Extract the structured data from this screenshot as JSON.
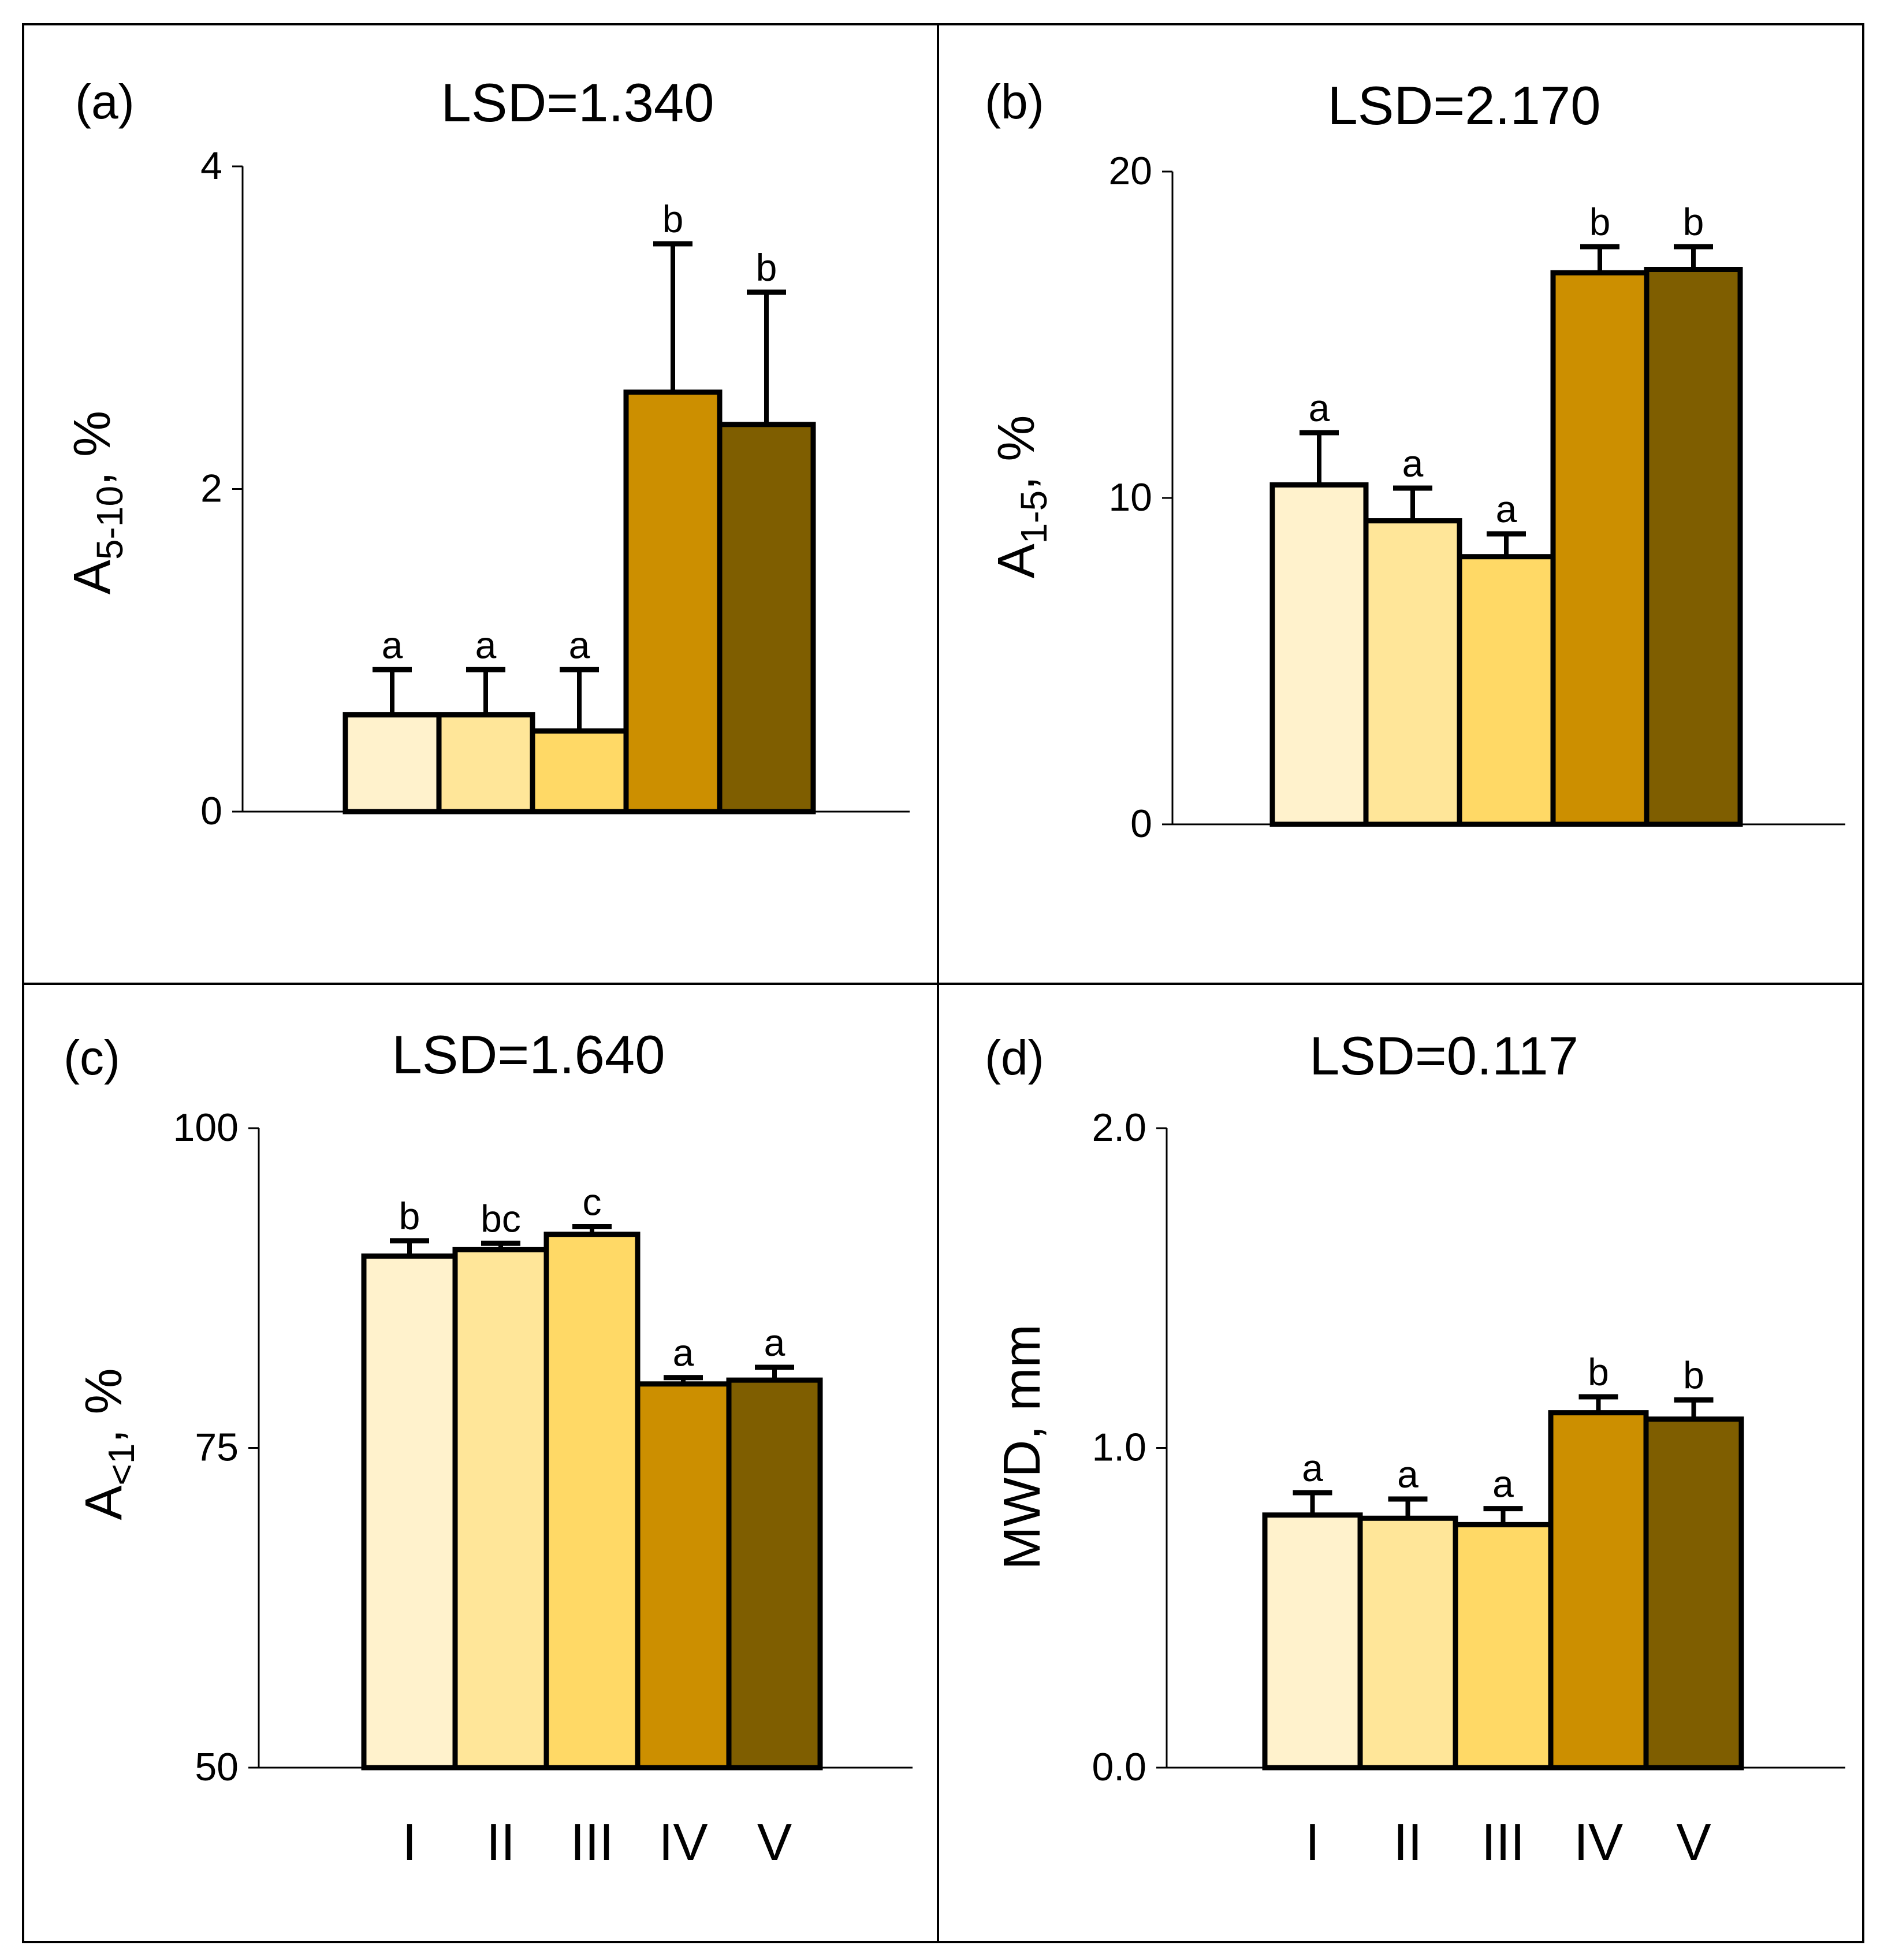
{
  "figure": {
    "colors": [
      "#FFF2CC",
      "#FFE699",
      "#FFD966",
      "#CC8F00",
      "#7F5E00"
    ],
    "x_ticks": [
      "I",
      "II",
      "III",
      "IV",
      "V"
    ]
  },
  "chart_data": [
    {
      "type": "bar",
      "panel_label": "(a)",
      "title": "LSD=1.340",
      "ylabel_main": "A",
      "ylabel_sub": "5-10",
      "ylabel_unit": ",  %",
      "categories": [
        "I",
        "II",
        "III",
        "IV",
        "V"
      ],
      "show_xticks": false,
      "values": [
        0.6,
        0.6,
        0.5,
        2.6,
        2.4
      ],
      "errors": [
        0.28,
        0.28,
        0.38,
        0.92,
        0.82
      ],
      "letters": [
        "a",
        "a",
        "a",
        "b",
        "b"
      ],
      "ylim": [
        0,
        4
      ],
      "yticks": [
        0,
        2,
        4
      ],
      "ytick_labels": [
        "0",
        "2",
        "4"
      ]
    },
    {
      "type": "bar",
      "panel_label": "(b)",
      "title": "LSD=2.170",
      "ylabel_main": "A",
      "ylabel_sub": "1-5",
      "ylabel_unit": ",  %",
      "categories": [
        "I",
        "II",
        "III",
        "IV",
        "V"
      ],
      "show_xticks": false,
      "values": [
        10.4,
        9.3,
        8.2,
        16.9,
        17.0
      ],
      "errors": [
        1.6,
        1.0,
        0.7,
        0.8,
        0.7
      ],
      "letters": [
        "a",
        "a",
        "a",
        "b",
        "b"
      ],
      "ylim": [
        0,
        20
      ],
      "yticks": [
        0,
        10,
        20
      ],
      "ytick_labels": [
        "0",
        "10",
        "20"
      ]
    },
    {
      "type": "bar",
      "panel_label": "(c)",
      "title": "LSD=1.640",
      "ylabel_main": "A",
      "ylabel_sub": "<1",
      "ylabel_unit": ",  %",
      "categories": [
        "I",
        "II",
        "III",
        "IV",
        "V"
      ],
      "show_xticks": true,
      "values": [
        90.0,
        90.5,
        91.7,
        80.0,
        80.3
      ],
      "errors": [
        1.2,
        0.5,
        0.6,
        0.5,
        1.0
      ],
      "letters": [
        "b",
        "bc",
        "c",
        "a",
        "a"
      ],
      "ylim": [
        50,
        100
      ],
      "yticks": [
        50,
        75,
        100
      ],
      "ytick_labels": [
        "50",
        "75",
        "100"
      ]
    },
    {
      "type": "bar",
      "panel_label": "(d)",
      "title": "LSD=0.117",
      "ylabel_main": "MWD, mm",
      "ylabel_sub": "",
      "ylabel_unit": "",
      "categories": [
        "I",
        "II",
        "III",
        "IV",
        "V"
      ],
      "show_xticks": true,
      "values": [
        0.79,
        0.78,
        0.76,
        1.11,
        1.09
      ],
      "errors": [
        0.07,
        0.06,
        0.05,
        0.05,
        0.06
      ],
      "letters": [
        "a",
        "a",
        "a",
        "b",
        "b"
      ],
      "ylim": [
        0,
        2
      ],
      "yticks": [
        0,
        1,
        2
      ],
      "ytick_labels": [
        "0.0",
        "1.0",
        "2.0"
      ]
    }
  ]
}
